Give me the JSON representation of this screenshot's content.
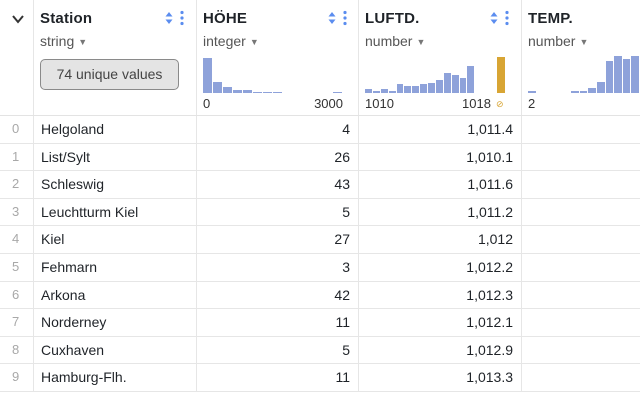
{
  "columns": {
    "station": {
      "title": "Station",
      "type": "string",
      "unique_values": "74 unique values"
    },
    "hohe": {
      "title": "HÖHE",
      "type": "integer",
      "min_label": "0",
      "max_label": "3000",
      "histogram": [
        0.95,
        0.3,
        0.16,
        0.08,
        0.08,
        0.04,
        0.04,
        0.03,
        0.0,
        0.0,
        0.0,
        0.0,
        0.0,
        0.02
      ]
    },
    "luft": {
      "title": "LUFTD.",
      "type": "number",
      "min_label": "1010",
      "max_label": "1018",
      "histogram": [
        0.1,
        0.06,
        0.12,
        0.06,
        0.24,
        0.18,
        0.18,
        0.24,
        0.28,
        0.36,
        0.54,
        0.5,
        0.4,
        0.72,
        0.0,
        0.0
      ],
      "null_fraction": 0.98,
      "null_symbol": "⊘"
    },
    "temp": {
      "title": "TEMP.",
      "type": "number",
      "min_label": "2",
      "histogram": [
        0.06,
        0.0,
        0.0,
        0.0,
        0.0,
        0.06,
        0.06,
        0.14,
        0.3,
        0.86,
        1.0,
        0.92,
        1.0
      ]
    }
  },
  "rows": [
    {
      "idx": "0",
      "station": "Helgoland",
      "hohe": "4",
      "luft": "1,011.4"
    },
    {
      "idx": "1",
      "station": "List/Sylt",
      "hohe": "26",
      "luft": "1,010.1"
    },
    {
      "idx": "2",
      "station": "Schleswig",
      "hohe": "43",
      "luft": "1,011.6"
    },
    {
      "idx": "3",
      "station": "Leuchtturm Kiel",
      "hohe": "5",
      "luft": "1,011.2"
    },
    {
      "idx": "4",
      "station": "Kiel",
      "hohe": "27",
      "luft": "1,012"
    },
    {
      "idx": "5",
      "station": "Fehmarn",
      "hohe": "3",
      "luft": "1,012.2"
    },
    {
      "idx": "6",
      "station": "Arkona",
      "hohe": "42",
      "luft": "1,012.3"
    },
    {
      "idx": "7",
      "station": "Norderney",
      "hohe": "11",
      "luft": "1,012.1"
    },
    {
      "idx": "8",
      "station": "Cuxhaven",
      "hohe": "5",
      "luft": "1,012.9"
    },
    {
      "idx": "9",
      "station": "Hamburg-Flh.",
      "hohe": "11",
      "luft": "1,013.3"
    }
  ],
  "colors": {
    "histogram_bar": "#8ea2da",
    "null_bar": "#d8a534",
    "sort_icon": "#5b8def"
  }
}
